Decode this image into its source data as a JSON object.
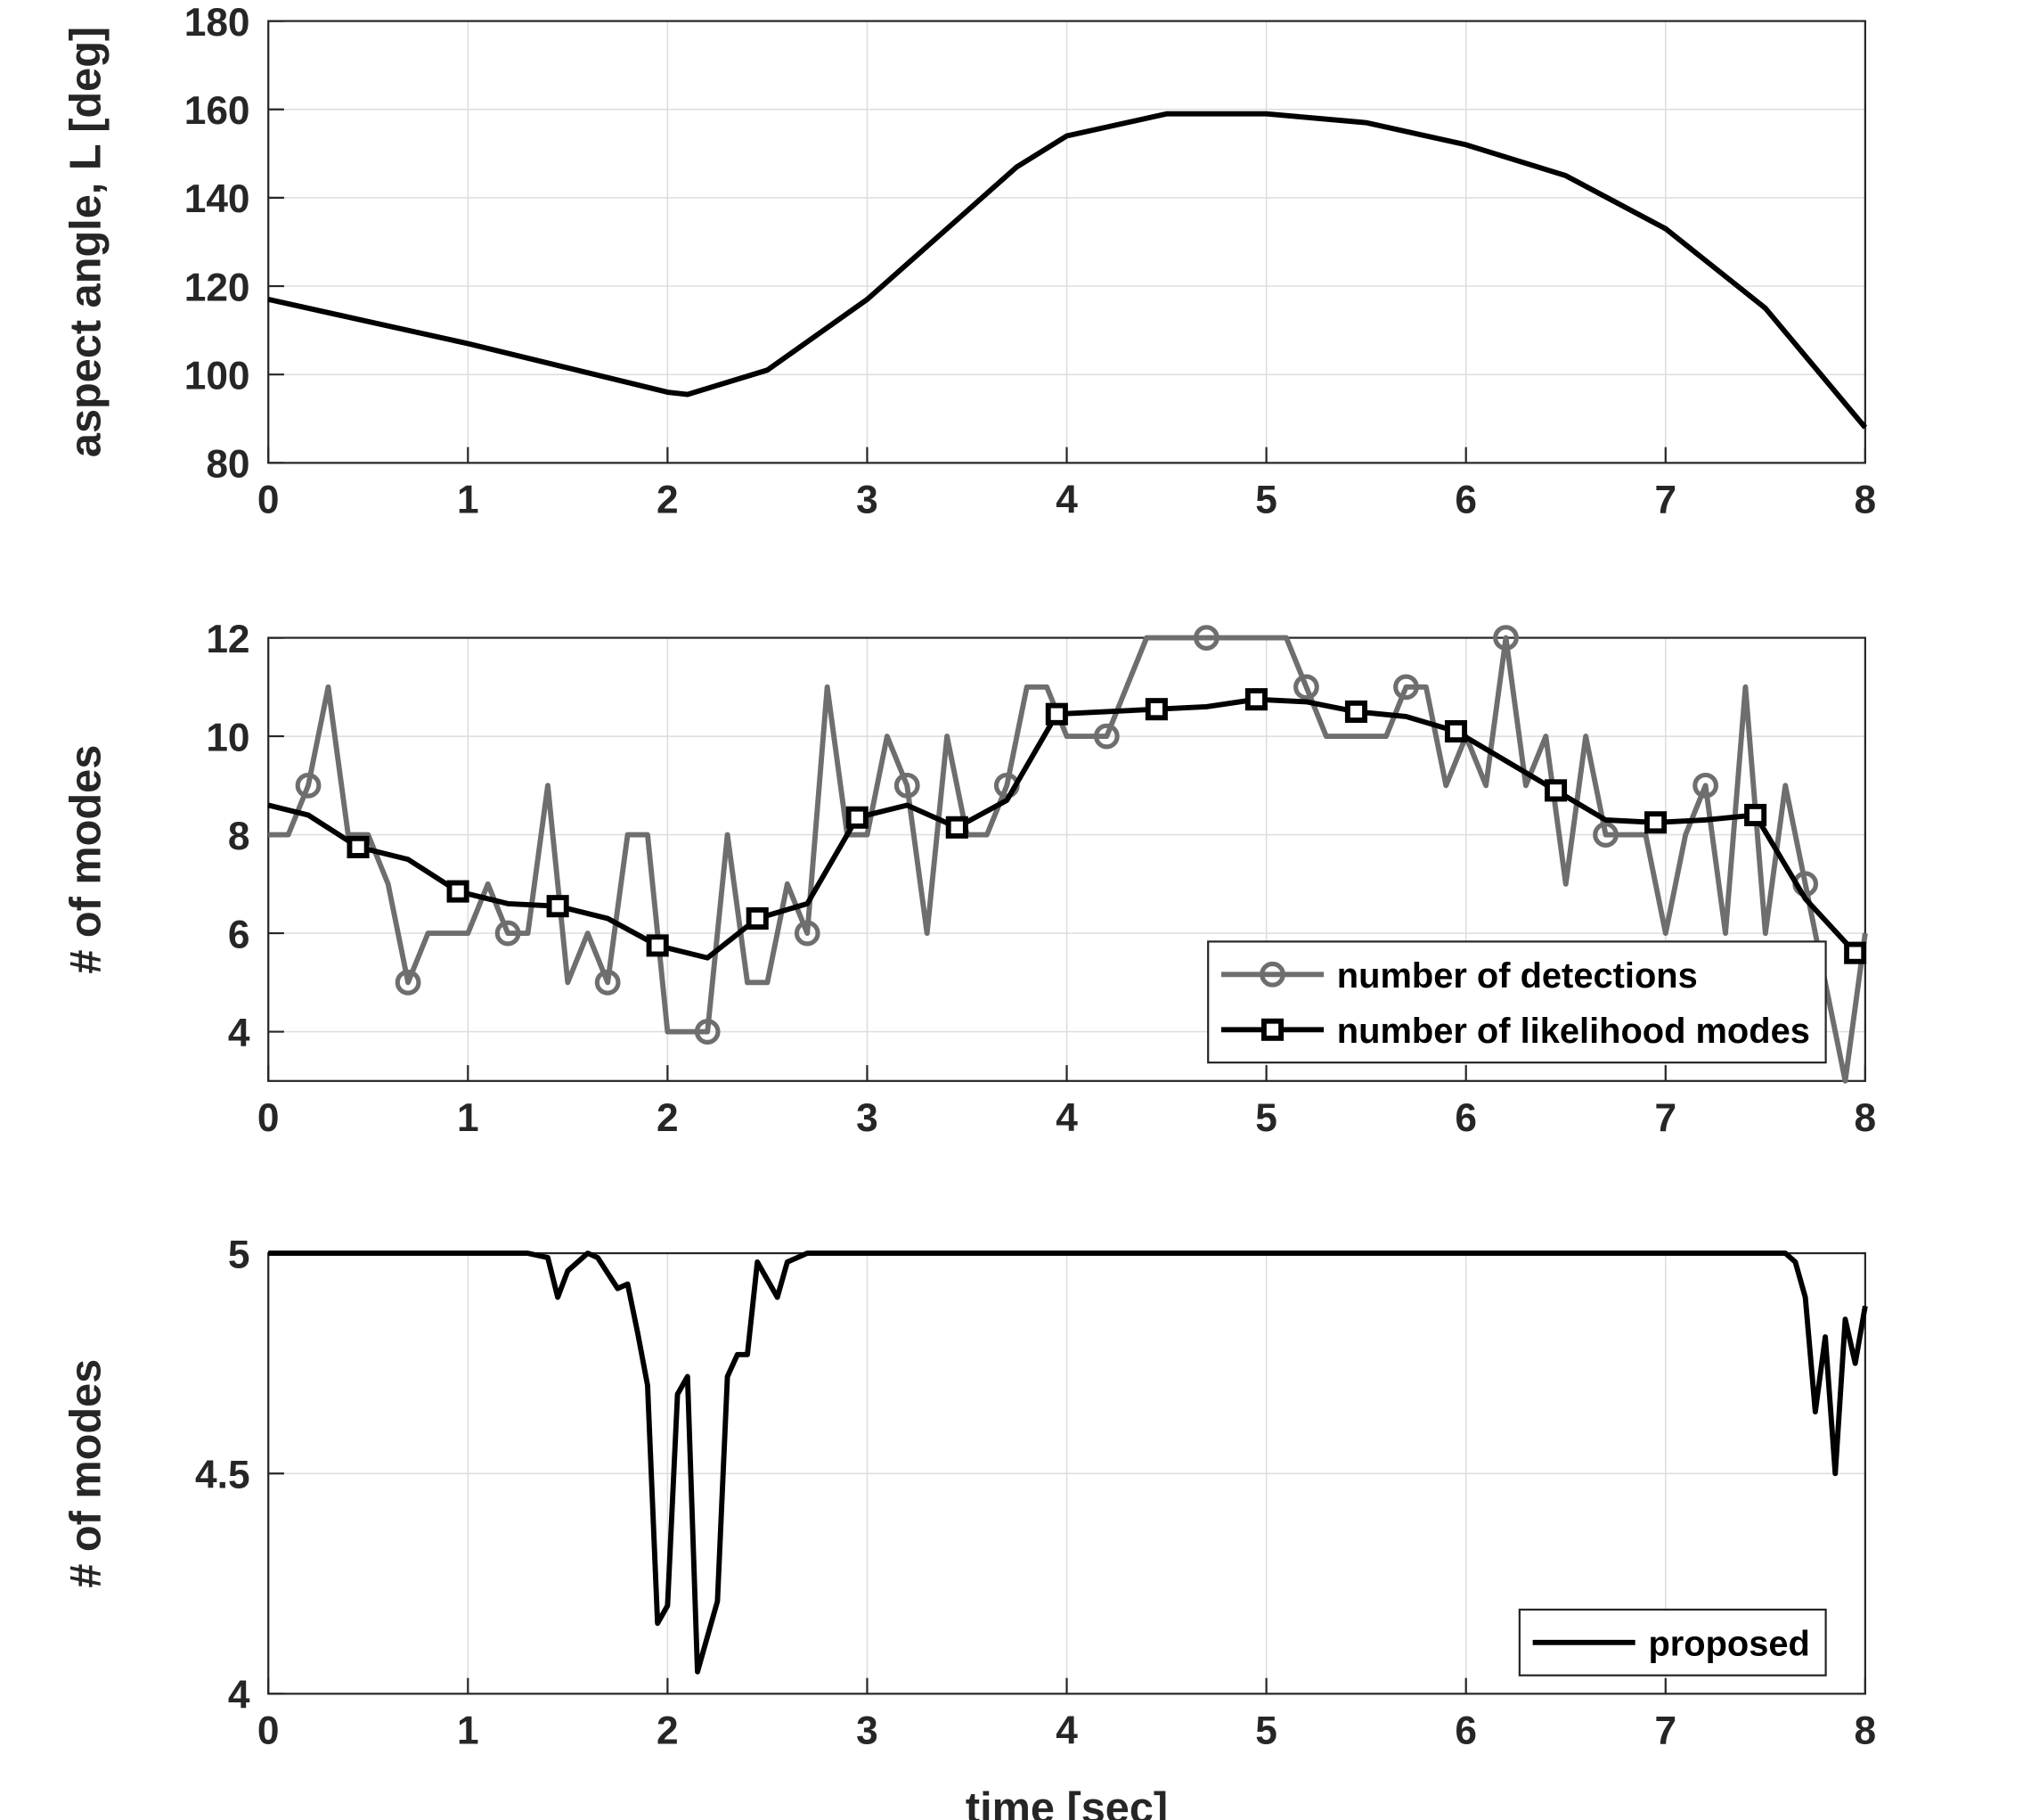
{
  "chart_data": [
    {
      "type": "line",
      "ylabel": "aspect angle, L [deg]",
      "color": "#000000",
      "grid": true,
      "xlim": [
        0,
        8
      ],
      "xticks": [
        0,
        1,
        2,
        3,
        4,
        5,
        6,
        7,
        8
      ],
      "ylim": [
        80,
        180
      ],
      "yticks": [
        80,
        100,
        120,
        140,
        160,
        180
      ],
      "x": [
        0,
        0.5,
        1,
        1.5,
        2,
        2.1,
        2.5,
        3,
        3.5,
        3.75,
        4,
        4.5,
        5,
        5.5,
        6,
        6.5,
        7,
        7.5,
        8
      ],
      "values": [
        117,
        112,
        107,
        101.5,
        96,
        95.5,
        101,
        117,
        137,
        147,
        154,
        159,
        159,
        157,
        152,
        145,
        133,
        115,
        88
      ]
    },
    {
      "type": "line",
      "ylabel": "# of modes",
      "grid": true,
      "legend": "lower right",
      "xlim": [
        0,
        8
      ],
      "xticks": [
        0,
        1,
        2,
        3,
        4,
        5,
        6,
        7,
        8
      ],
      "ylim": [
        3,
        12
      ],
      "yticks": [
        4,
        6,
        8,
        10,
        12
      ],
      "series": [
        {
          "name": "number of detections",
          "color": "#6e6e6e",
          "marker": "circle",
          "markevery": [
            2,
            5
          ],
          "x": [
            0,
            0.1,
            0.2,
            0.3,
            0.4,
            0.5,
            0.6,
            0.7,
            0.8,
            0.9,
            1,
            1.1,
            1.2,
            1.3,
            1.4,
            1.5,
            1.6,
            1.7,
            1.8,
            1.9,
            2,
            2.1,
            2.2,
            2.3,
            2.4,
            2.5,
            2.6,
            2.7,
            2.8,
            2.9,
            3,
            3.1,
            3.2,
            3.3,
            3.4,
            3.5,
            3.6,
            3.7,
            3.8,
            3.9,
            4,
            4.1,
            4.2,
            4.3,
            4.4,
            4.5,
            4.6,
            4.7,
            4.8,
            4.9,
            5,
            5.1,
            5.2,
            5.3,
            5.4,
            5.5,
            5.6,
            5.7,
            5.8,
            5.9,
            6,
            6.1,
            6.2,
            6.3,
            6.4,
            6.5,
            6.6,
            6.7,
            6.8,
            6.9,
            7,
            7.1,
            7.2,
            7.3,
            7.4,
            7.5,
            7.6,
            7.7,
            7.8,
            7.9,
            8
          ],
          "values": [
            8,
            8,
            9,
            11,
            8,
            8,
            7,
            5,
            6,
            6,
            6,
            7,
            6,
            6,
            9,
            5,
            6,
            5,
            8,
            8,
            4,
            4,
            4,
            8,
            5,
            5,
            7,
            6,
            11,
            8,
            8,
            10,
            9,
            6,
            10,
            8,
            8,
            9,
            11,
            11,
            10,
            10,
            10,
            11,
            12,
            12,
            12,
            12,
            12,
            12,
            12,
            12,
            11,
            10,
            10,
            10,
            10,
            11,
            11,
            9,
            10,
            9,
            12,
            9,
            10,
            7,
            10,
            8,
            8,
            8,
            6,
            8,
            9,
            6,
            11,
            6,
            9,
            7,
            5,
            3,
            6
          ]
        },
        {
          "name": "number of likelihood modes",
          "color": "#000000",
          "marker": "square",
          "markevery": [
            2,
            2
          ],
          "x": [
            0,
            0.2,
            0.45,
            0.7,
            0.95,
            1.2,
            1.45,
            1.7,
            1.95,
            2.2,
            2.45,
            2.7,
            2.95,
            3.2,
            3.45,
            3.7,
            3.95,
            4.2,
            4.45,
            4.7,
            4.95,
            5.2,
            5.45,
            5.7,
            5.95,
            6.2,
            6.45,
            6.7,
            6.95,
            7.2,
            7.45,
            7.7,
            7.95,
            8
          ],
          "values": [
            8.6,
            8.4,
            7.75,
            7.5,
            6.85,
            6.6,
            6.55,
            6.3,
            5.75,
            5.5,
            6.3,
            6.6,
            8.35,
            8.6,
            8.15,
            8.7,
            10.45,
            10.5,
            10.55,
            10.6,
            10.75,
            10.7,
            10.5,
            10.4,
            10.1,
            9.5,
            8.9,
            8.3,
            8.25,
            8.3,
            8.4,
            6.7,
            5.6,
            5.7
          ]
        }
      ]
    },
    {
      "type": "line",
      "ylabel": "# of modes",
      "xlabel": "time [sec]",
      "grid": true,
      "legend": "lower right",
      "xlim": [
        0,
        8
      ],
      "xticks": [
        0,
        1,
        2,
        3,
        4,
        5,
        6,
        7,
        8
      ],
      "ylim": [
        4,
        5
      ],
      "yticks": [
        4,
        4.5,
        5
      ],
      "series": [
        {
          "name": "proposed",
          "color": "#000000",
          "x": [
            0,
            1.3,
            1.4,
            1.45,
            1.5,
            1.6,
            1.65,
            1.75,
            1.8,
            1.85,
            1.9,
            1.95,
            2,
            2.05,
            2.1,
            2.15,
            2.2,
            2.25,
            2.3,
            2.35,
            2.4,
            2.45,
            2.55,
            2.6,
            2.7,
            7.6,
            7.65,
            7.7,
            7.75,
            7.8,
            7.85,
            7.9,
            7.95,
            8
          ],
          "values": [
            5,
            5,
            4.99,
            4.9,
            4.96,
            5,
            4.99,
            4.92,
            4.93,
            4.82,
            4.7,
            4.16,
            4.2,
            4.68,
            4.72,
            4.05,
            4.13,
            4.21,
            4.72,
            4.77,
            4.77,
            4.98,
            4.9,
            4.98,
            5,
            5,
            4.98,
            4.9,
            4.64,
            4.81,
            4.5,
            4.85,
            4.75,
            4.88
          ]
        }
      ]
    }
  ]
}
